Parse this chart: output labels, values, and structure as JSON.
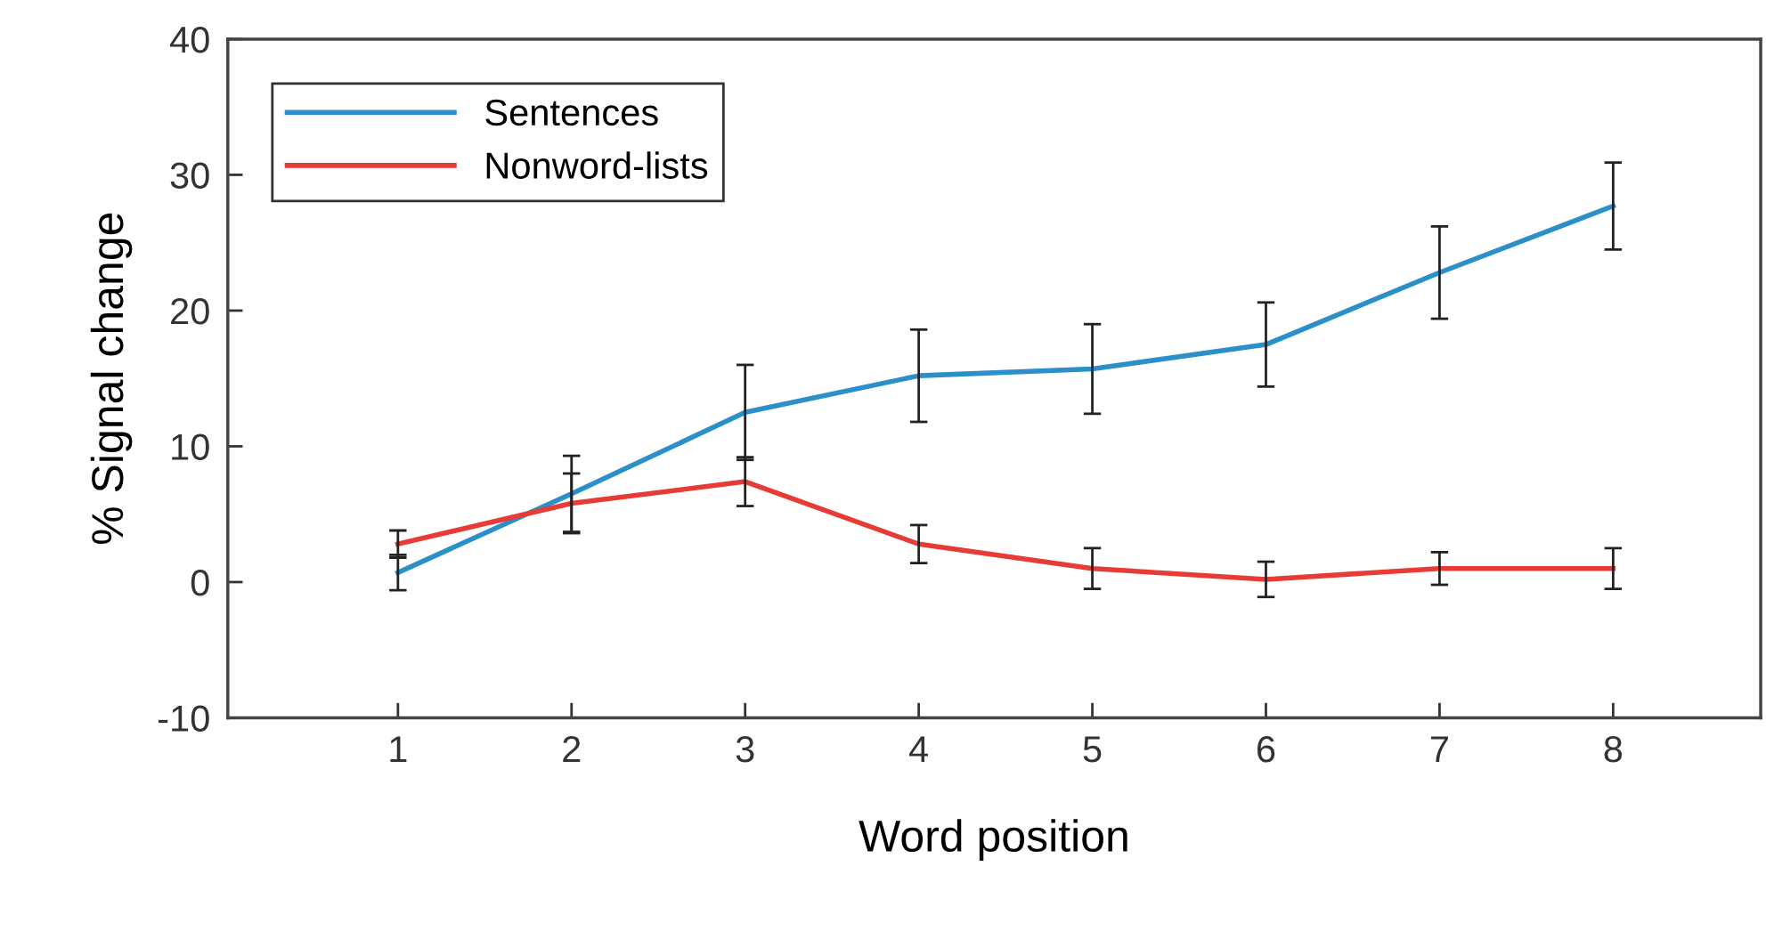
{
  "chart_data": {
    "type": "line",
    "xlabel": "Word position",
    "ylabel": "% Signal change",
    "x": [
      1,
      2,
      3,
      4,
      5,
      6,
      7,
      8
    ],
    "series": [
      {
        "name": "Sentences",
        "color": "#2b8fc9",
        "values": [
          0.7,
          6.5,
          12.5,
          15.2,
          15.7,
          17.5,
          22.8,
          27.7
        ],
        "errors": [
          1.3,
          2.8,
          3.5,
          3.4,
          3.3,
          3.1,
          3.4,
          3.2
        ]
      },
      {
        "name": "Nonword-lists",
        "color": "#e63c35",
        "values": [
          2.8,
          5.8,
          7.4,
          2.8,
          1.0,
          0.2,
          1.0,
          1.0
        ],
        "errors": [
          1.0,
          2.2,
          1.8,
          1.4,
          1.5,
          1.3,
          1.2,
          1.5
        ]
      }
    ],
    "xlim": [
      0.02,
      8.85
    ],
    "xticks": [
      1,
      2,
      3,
      4,
      5,
      6,
      7,
      8
    ],
    "ylim": [
      -10,
      40
    ],
    "yticks": [
      -10,
      0,
      10,
      20,
      30,
      40
    ],
    "legend": "top left",
    "grid": false,
    "marker": "none",
    "line_style": "solid"
  }
}
